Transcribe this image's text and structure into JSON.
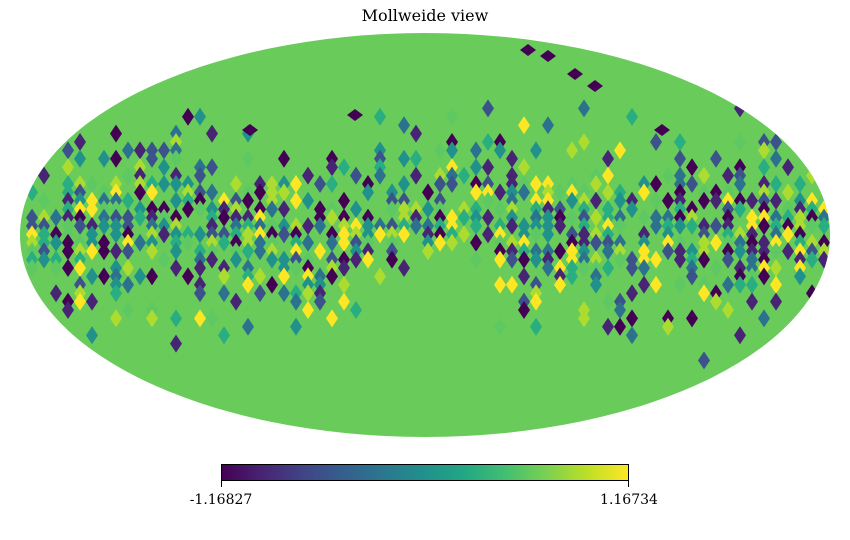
{
  "chart_data": {
    "type": "heatmap",
    "title": "Mollweide view",
    "projection": "mollweide",
    "colormap": "viridis",
    "colorbar": {
      "min_label": "-1.16827",
      "max_label": "1.16734",
      "min": -1.16827,
      "max": 1.16734,
      "orientation": "horizontal"
    },
    "background_value": 0.55,
    "pixel_layout": "irregular patchy pixels concentrated in an equatorial band; rest of sky uniform"
  }
}
